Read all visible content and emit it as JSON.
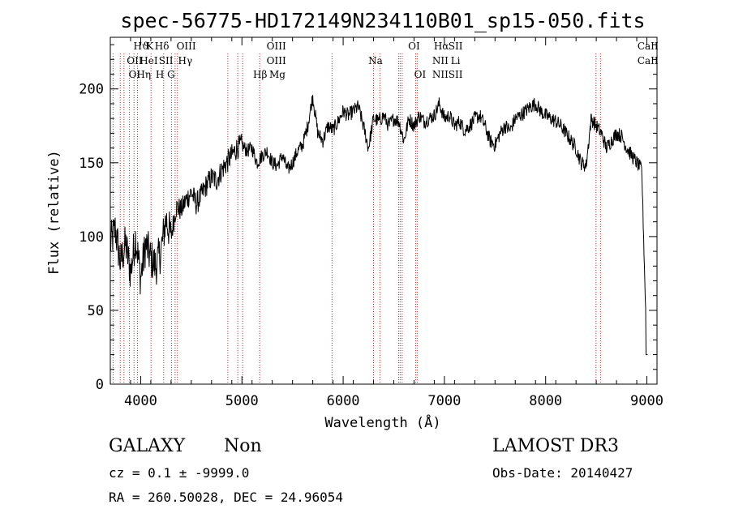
{
  "chart_data": {
    "type": "line",
    "title": "spec-56775-HD172149N234110B01_sp15-050.fits",
    "xlabel": "Wavelength (Å)",
    "ylabel": "Flux (relative)",
    "xlim": [
      3700,
      9100
    ],
    "ylim": [
      0,
      235
    ],
    "xticks": [
      4000,
      5000,
      6000,
      7000,
      8000,
      9000
    ],
    "yticks": [
      0,
      50,
      100,
      150,
      200
    ],
    "series": [
      {
        "name": "flux",
        "x": [
          3700,
          3750,
          3800,
          3850,
          3900,
          3950,
          4000,
          4050,
          4100,
          4150,
          4200,
          4250,
          4300,
          4350,
          4400,
          4450,
          4500,
          4550,
          4600,
          4650,
          4700,
          4750,
          4800,
          4850,
          4900,
          4950,
          5000,
          5050,
          5100,
          5150,
          5200,
          5250,
          5300,
          5350,
          5400,
          5450,
          5500,
          5550,
          5600,
          5650,
          5700,
          5750,
          5800,
          5850,
          5900,
          5950,
          6000,
          6050,
          6100,
          6150,
          6200,
          6250,
          6300,
          6350,
          6400,
          6450,
          6500,
          6550,
          6600,
          6650,
          6700,
          6750,
          6800,
          6850,
          6900,
          6950,
          7000,
          7050,
          7100,
          7150,
          7200,
          7250,
          7300,
          7350,
          7400,
          7450,
          7500,
          7550,
          7600,
          7650,
          7700,
          7750,
          7800,
          7850,
          7900,
          7950,
          8000,
          8050,
          8100,
          8150,
          8200,
          8250,
          8300,
          8350,
          8400,
          8450,
          8500,
          8550,
          8600,
          8650,
          8700,
          8750,
          8800,
          8850,
          8900,
          8950,
          9000
        ],
        "values": [
          95,
          105,
          82,
          95,
          76,
          100,
          72,
          95,
          85,
          80,
          90,
          112,
          100,
          120,
          118,
          125,
          130,
          122,
          128,
          135,
          140,
          138,
          145,
          150,
          155,
          160,
          162,
          158,
          160,
          150,
          155,
          158,
          150,
          148,
          155,
          145,
          150,
          158,
          162,
          175,
          195,
          170,
          165,
          175,
          172,
          178,
          185,
          182,
          185,
          188,
          175,
          160,
          180,
          178,
          182,
          175,
          180,
          178,
          165,
          180,
          175,
          182,
          178,
          180,
          182,
          190,
          180,
          182,
          175,
          178,
          172,
          175,
          180,
          182,
          175,
          165,
          162,
          170,
          175,
          172,
          180,
          182,
          185,
          188,
          190,
          185,
          182,
          180,
          178,
          175,
          170,
          165,
          160,
          150,
          148,
          180,
          175,
          170,
          160,
          165,
          170,
          168,
          160,
          155,
          150,
          145,
          20
        ]
      }
    ],
    "lines_top": [
      {
        "label": "Hϑ",
        "x": 3889
      },
      {
        "label": "K",
        "x": 3934
      },
      {
        "label": "Hδ",
        "x": 4102
      },
      {
        "label": "OIII",
        "x": 4363
      },
      {
        "label": "OIII",
        "x": 5007
      },
      {
        "label": "OI",
        "x": 6300
      },
      {
        "label": "Hα",
        "x": 6563
      },
      {
        "label": "SII",
        "x": 6716
      },
      {
        "label": "CaII",
        "x": 8542
      }
    ],
    "emission_labels": [
      {
        "row": 0,
        "label": "Hϑ",
        "x": 4005
      },
      {
        "row": 0,
        "label": "K",
        "x": 4090
      },
      {
        "row": 0,
        "label": "Hδ",
        "x": 4210
      },
      {
        "row": 0,
        "label": "OIII",
        "x": 4450
      },
      {
        "row": 0,
        "label": "OIII",
        "x": 5340
      },
      {
        "row": 0,
        "label": "OI",
        "x": 6700
      },
      {
        "row": 0,
        "label": "Hα",
        "x": 6970
      },
      {
        "row": 0,
        "label": "SII",
        "x": 7110
      },
      {
        "row": 0,
        "label": "CaII",
        "x": 9010
      },
      {
        "row": 1,
        "label": "OII",
        "x": 3940
      },
      {
        "row": 1,
        "label": "HeI",
        "x": 4080
      },
      {
        "row": 1,
        "label": "SII",
        "x": 4250
      },
      {
        "row": 1,
        "label": "Hγ",
        "x": 4440
      },
      {
        "row": 1,
        "label": "OIII",
        "x": 5340
      },
      {
        "row": 1,
        "label": "Na",
        "x": 6320
      },
      {
        "row": 1,
        "label": "NII",
        "x": 6960
      },
      {
        "row": 1,
        "label": "Li",
        "x": 7110
      },
      {
        "row": 1,
        "label": "CaII",
        "x": 9010
      },
      {
        "row": 2,
        "label": "OI",
        "x": 3940
      },
      {
        "row": 2,
        "label": "Hη",
        "x": 4030
      },
      {
        "row": 2,
        "label": "H",
        "x": 4190
      },
      {
        "row": 2,
        "label": "G",
        "x": 4300
      },
      {
        "row": 2,
        "label": "Hβ",
        "x": 5180
      },
      {
        "row": 2,
        "label": "Mg",
        "x": 5350
      },
      {
        "row": 2,
        "label": "OI",
        "x": 6760
      },
      {
        "row": 2,
        "label": "NII",
        "x": 6960
      },
      {
        "row": 2,
        "label": "SII",
        "x": 7110
      }
    ],
    "vlines": [
      3727,
      3798,
      3835,
      3889,
      3934,
      3969,
      4102,
      4227,
      4304,
      4340,
      4363,
      4861,
      4959,
      5007,
      5175,
      5890,
      6300,
      6363,
      6548,
      6563,
      6583,
      6716,
      6731,
      8498,
      8542
    ]
  },
  "info": {
    "class": "GALAXY",
    "subclass": "Non",
    "survey": "LAMOST DR3",
    "cz": "cz = 0.1 ± -9999.0",
    "obs_date": "Obs-Date: 20140427",
    "coords": "RA = 260.50028, DEC =  24.96054"
  }
}
